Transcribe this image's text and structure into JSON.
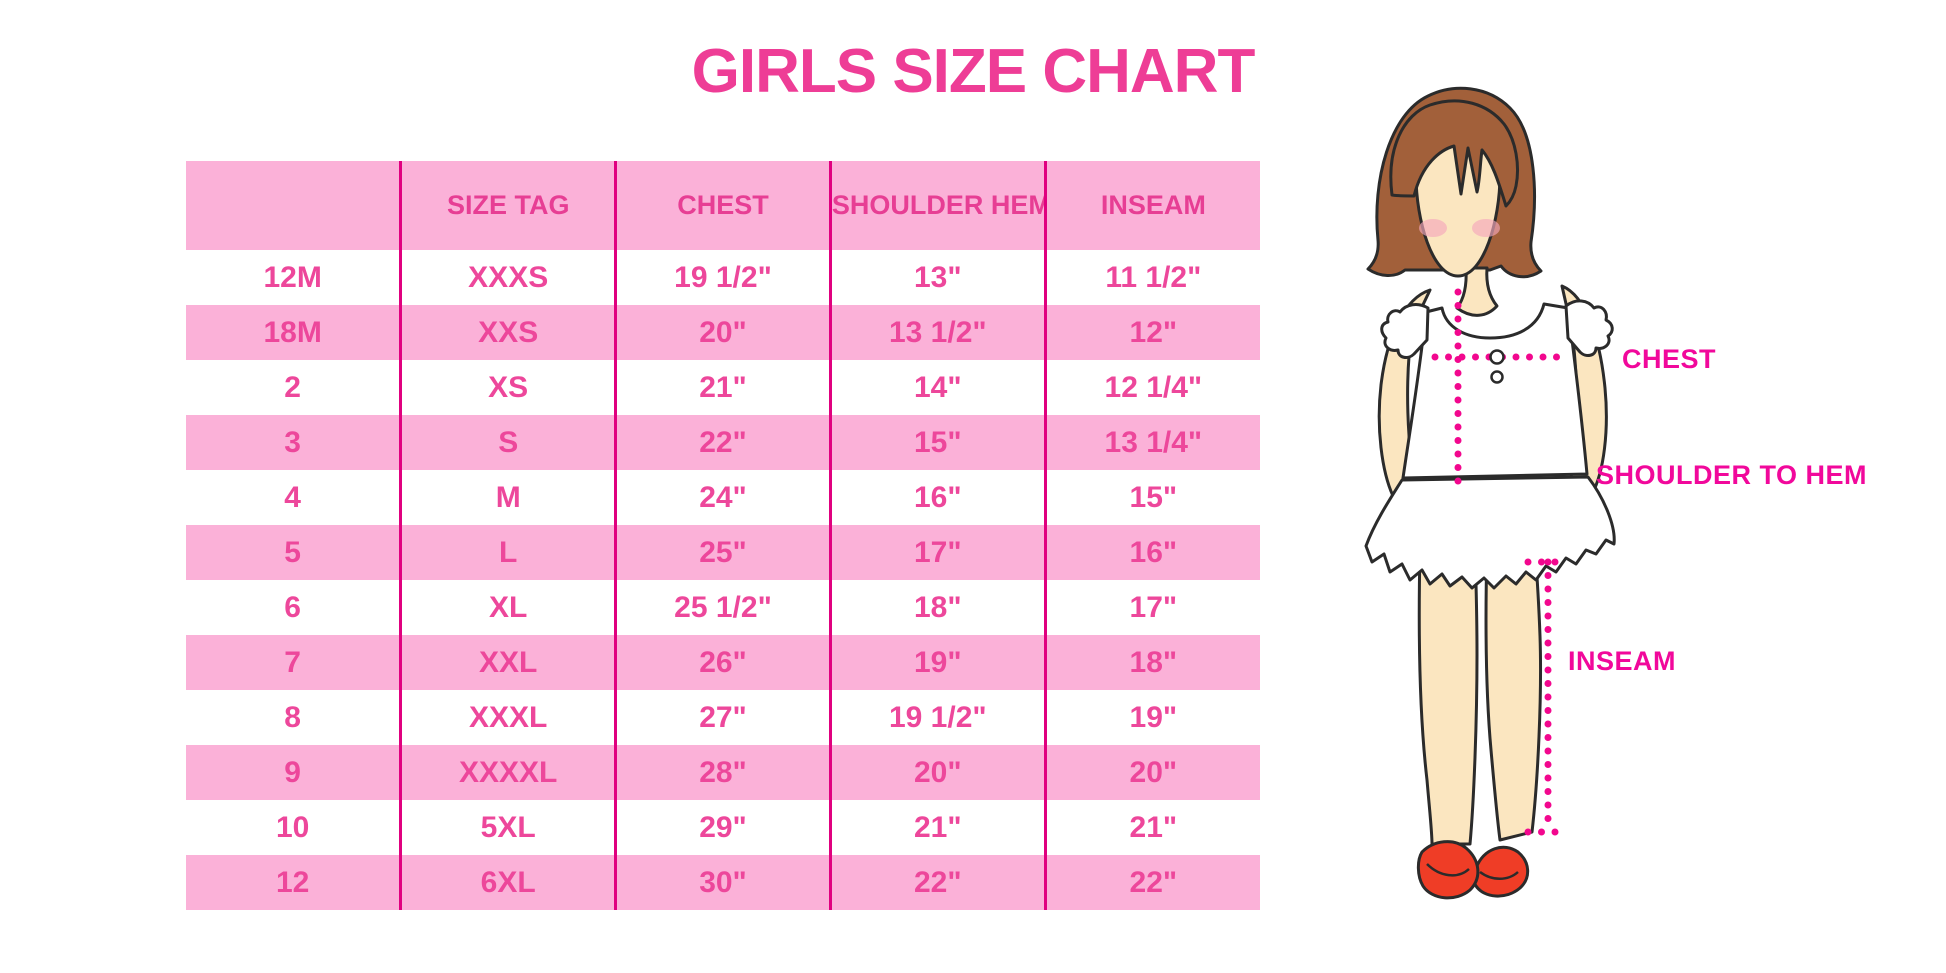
{
  "title": "GIRLS SIZE CHART",
  "chart_data": {
    "type": "table",
    "title": "GIRLS SIZE CHART",
    "columns": [
      "",
      "SIZE TAG",
      "CHEST",
      "SHOULDER HEM",
      "INSEAM"
    ],
    "rows": [
      [
        "12M",
        "XXXS",
        "19 1/2\"",
        "13\"",
        "11 1/2\""
      ],
      [
        "18M",
        "XXS",
        "20\"",
        "13 1/2\"",
        "12\""
      ],
      [
        "2",
        "XS",
        "21\"",
        "14\"",
        "12 1/4\""
      ],
      [
        "3",
        "S",
        "22\"",
        "15\"",
        "13 1/4\""
      ],
      [
        "4",
        "M",
        "24\"",
        "16\"",
        "15\""
      ],
      [
        "5",
        "L",
        "25\"",
        "17\"",
        "16\""
      ],
      [
        "6",
        "XL",
        "25 1/2\"",
        "18\"",
        "17\""
      ],
      [
        "7",
        "XXL",
        "26\"",
        "19\"",
        "18\""
      ],
      [
        "8",
        "XXXL",
        "27\"",
        "19 1/2\"",
        "19\""
      ],
      [
        "9",
        "XXXXL",
        "28\"",
        "20\"",
        "20\""
      ],
      [
        "10",
        "5XL",
        "29\"",
        "21\"",
        "21\""
      ],
      [
        "12",
        "6XL",
        "30\"",
        "22\"",
        "22\""
      ]
    ],
    "row_stripe_pattern": "header pink, then data rows alternate white/pink starting white"
  },
  "diagram": {
    "labels": {
      "chest": "CHEST",
      "shoulder_to_hem": "SHOULDER TO HEM",
      "inseam": "INSEAM"
    }
  },
  "colors": {
    "title_pink": "#EE3D96",
    "row_pink": "#FBB1D8",
    "divider_magenta": "#E0007F",
    "cell_text_pink": "#ED479B",
    "label_magenta": "#F1089B",
    "dotted_line_magenta": "#F2078E",
    "hair_brown": "#A2603A",
    "skin": "#FBE6C0",
    "blush": "#F5A8BC",
    "shoe_red": "#EF3D26",
    "outline": "#2B2B2B",
    "background": "#FFFFFF"
  }
}
